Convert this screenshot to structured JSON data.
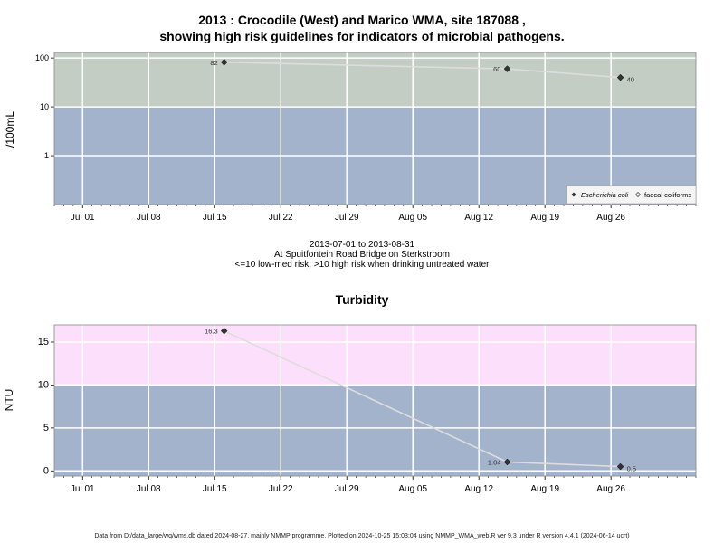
{
  "page": {
    "title_line1": "2013 : Crocodile (West) and Marico WMA, site 187088 ,",
    "title_line2": "showing high risk guidelines for indicators of microbial pathogens.",
    "caption_line1": "2013-07-01 to 2013-08-31",
    "caption_line2": "At Spuitfontein Road Bridge on Sterkstroom",
    "caption_line3": "<=10 low-med risk; >10 high risk when drinking untreated water",
    "footer": "Data from D:/data_large/wq/wms.db dated 2024-08-27, mainly NMMP programme. Plotted on 2024-10-25 15:03:04 using NMMP_WMA_web.R ver 9.3 under R version 4.4.1 (2024-06-14 ucrt)"
  },
  "colors": {
    "band_low": "#a3b3cc",
    "band_high_micro": "#c3cdc3",
    "band_high_turb": "#fbdffb",
    "grid": "#ffffff",
    "line": "#dddddd",
    "point": "#333333"
  },
  "chart_data": [
    {
      "type": "line",
      "title": "",
      "ylabel": "/100mL",
      "xlabel": "",
      "yscale": "log",
      "ylim": [
        0.1,
        130
      ],
      "ytick_values": [
        1,
        10,
        100
      ],
      "ytick_labels": [
        "1",
        "10",
        "100"
      ],
      "xlim": [
        "2013-06-28",
        "2013-09-04"
      ],
      "xtick_values": [
        "2013-07-01",
        "2013-07-08",
        "2013-07-15",
        "2013-07-22",
        "2013-07-29",
        "2013-08-05",
        "2013-08-12",
        "2013-08-19",
        "2013-08-26"
      ],
      "xtick_labels": [
        "Jul 01",
        "Jul 08",
        "Jul 15",
        "Jul 22",
        "Jul 29",
        "Aug 05",
        "Aug 12",
        "Aug 19",
        "Aug 26"
      ],
      "threshold": 10,
      "grid": true,
      "legend_position": "bottom-right",
      "series": [
        {
          "name": "Escherichia coli",
          "marker": "filled-diamond",
          "points": [
            {
              "x": "2013-07-16",
              "y": 82,
              "label": "82"
            },
            {
              "x": "2013-08-15",
              "y": 60,
              "label": "60"
            },
            {
              "x": "2013-08-27",
              "y": 40,
              "label": "40"
            }
          ]
        },
        {
          "name": "faecal coliforms",
          "marker": "open-diamond",
          "points": []
        }
      ]
    },
    {
      "type": "line",
      "title": "Turbidity",
      "ylabel": "NTU",
      "xlabel": "",
      "yscale": "linear",
      "ylim": [
        -0.6,
        17
      ],
      "ytick_values": [
        0,
        5,
        10,
        15
      ],
      "ytick_labels": [
        "0",
        "5",
        "10",
        "15"
      ],
      "xlim": [
        "2013-06-28",
        "2013-09-04"
      ],
      "xtick_values": [
        "2013-07-01",
        "2013-07-08",
        "2013-07-15",
        "2013-07-22",
        "2013-07-29",
        "2013-08-05",
        "2013-08-12",
        "2013-08-19",
        "2013-08-26"
      ],
      "xtick_labels": [
        "Jul 01",
        "Jul 08",
        "Jul 15",
        "Jul 22",
        "Jul 29",
        "Aug 05",
        "Aug 12",
        "Aug 19",
        "Aug 26"
      ],
      "threshold": 10,
      "grid": true,
      "series": [
        {
          "name": "",
          "marker": "filled-diamond",
          "points": [
            {
              "x": "2013-07-16",
              "y": 16.3,
              "label": "16.3"
            },
            {
              "x": "2013-08-15",
              "y": 1.04,
              "label": "1.04"
            },
            {
              "x": "2013-08-27",
              "y": 0.5,
              "label": "0.5"
            }
          ]
        }
      ]
    }
  ]
}
